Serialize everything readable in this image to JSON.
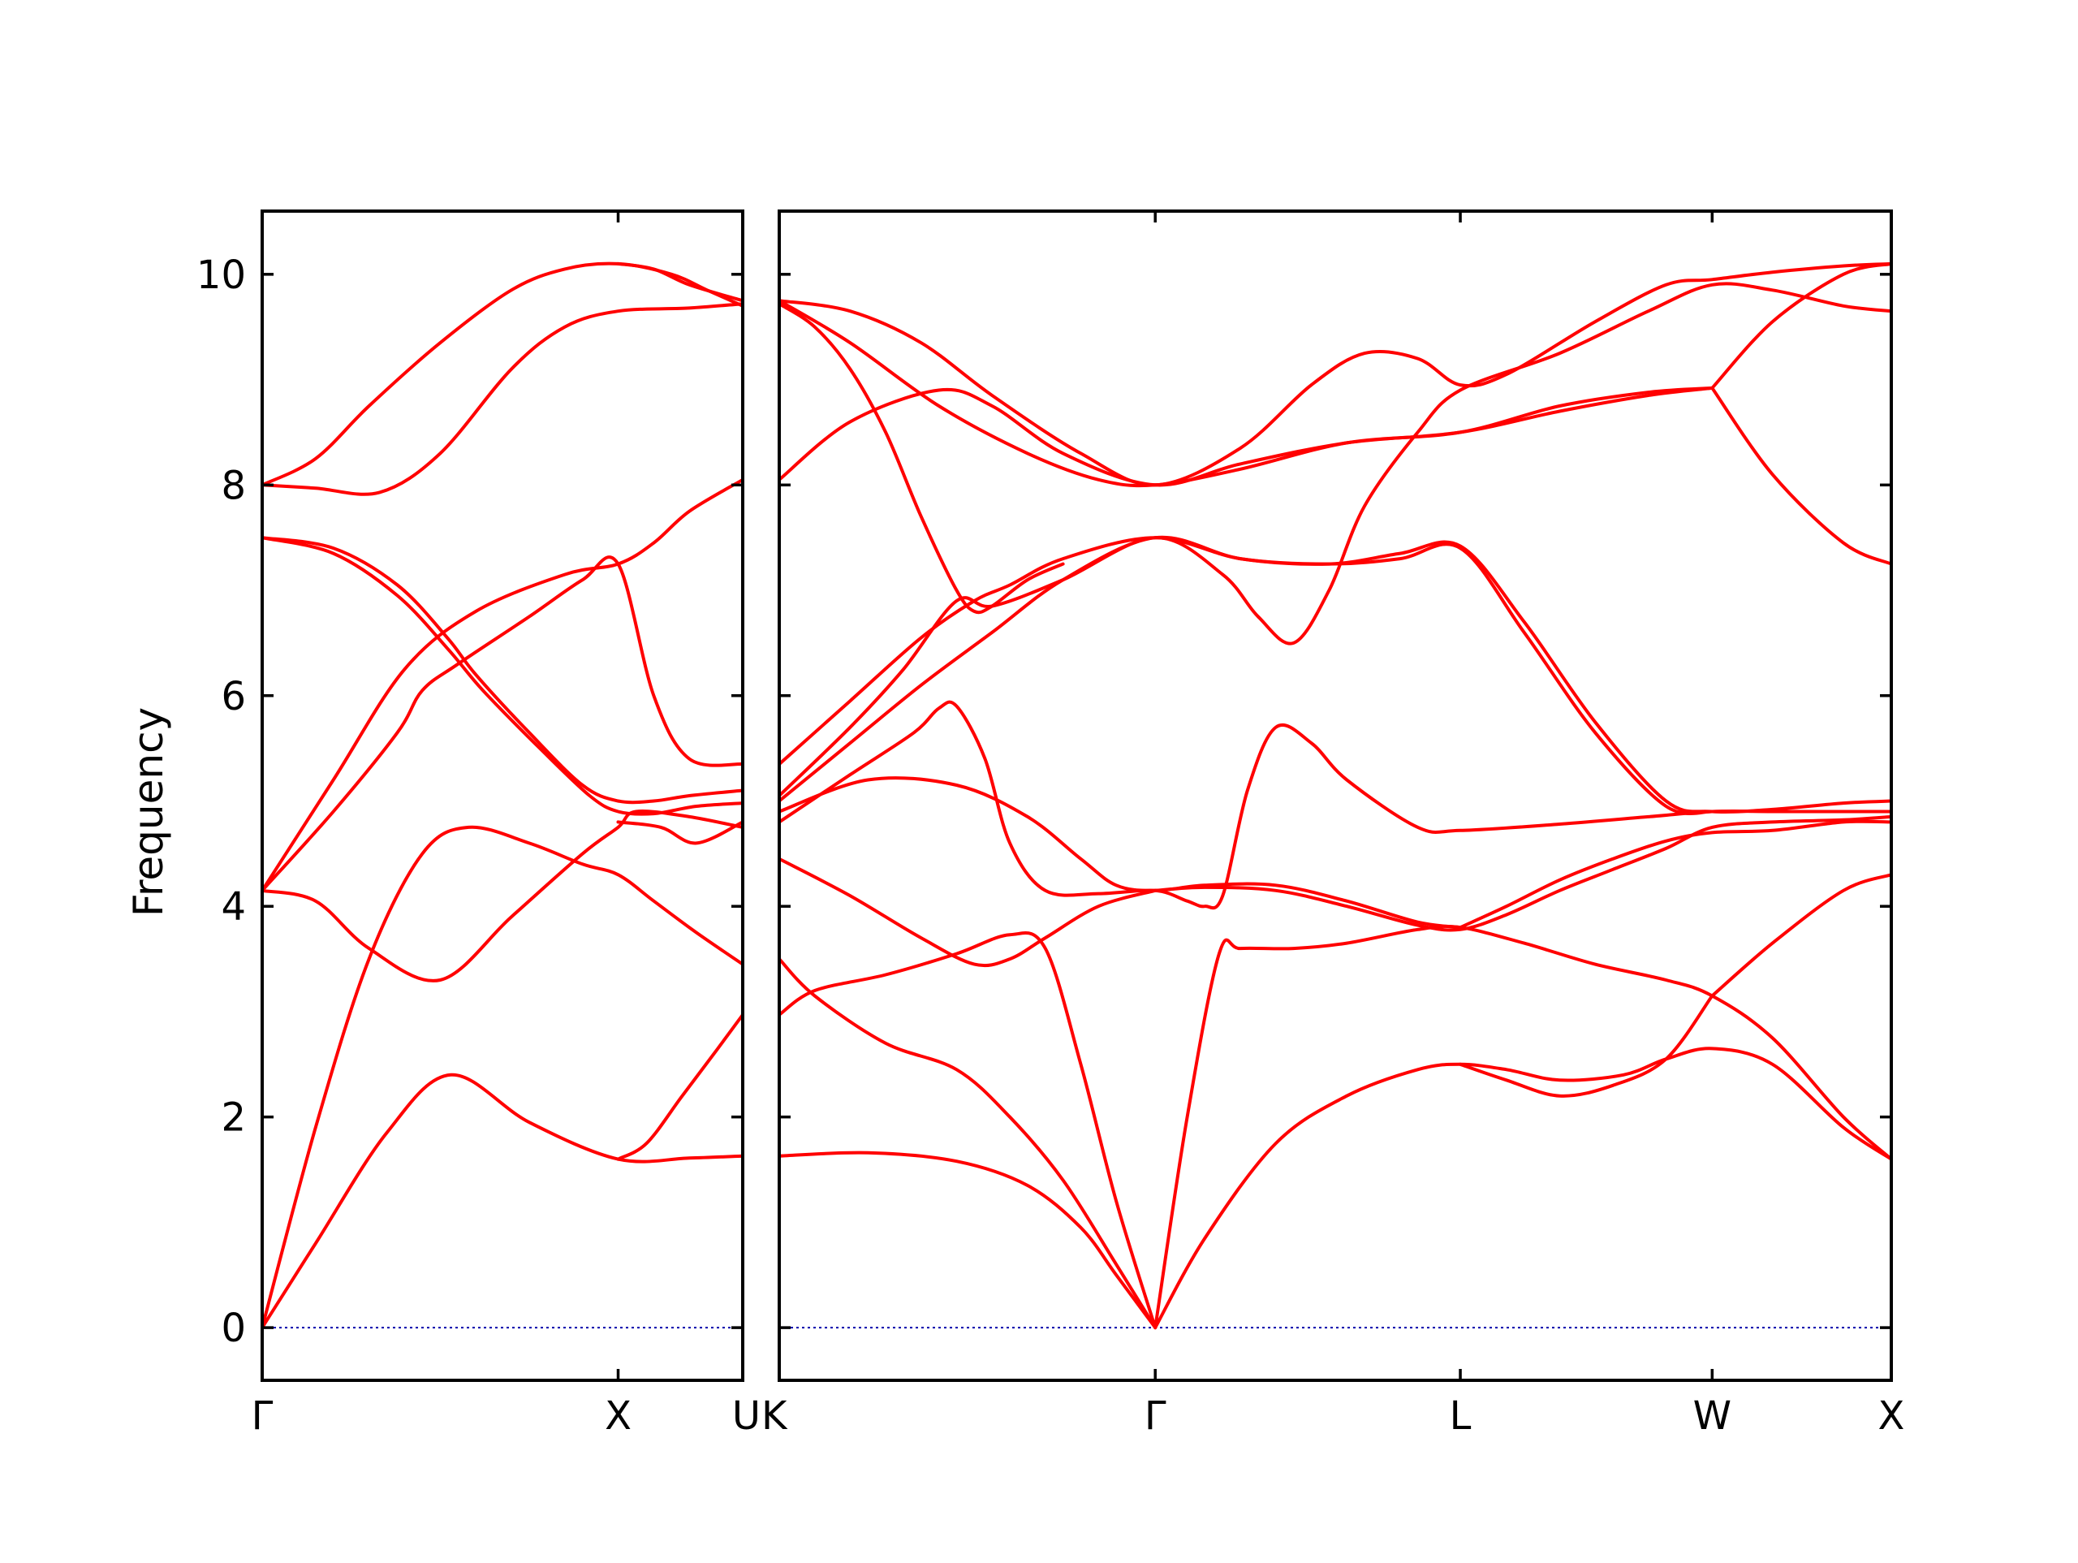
{
  "colors": {
    "band": "#ff0000",
    "zero_line": "#0000aa",
    "axis": "#000000"
  },
  "chart_data": {
    "type": "line",
    "title": "",
    "ylabel": "Frequency",
    "xlabel": "",
    "ylim": [
      -0.5,
      10.6
    ],
    "yticks": [
      0,
      2,
      4,
      6,
      8,
      10
    ],
    "grid": false,
    "legend": "none",
    "panels": [
      {
        "id": "left",
        "xlim": [
          0,
          1.35
        ],
        "high_symmetry_points": [
          {
            "label": "Γ",
            "x": 0
          },
          {
            "label": "X",
            "x": 1.0
          },
          {
            "label": "U",
            "x": 1.35
          }
        ],
        "zero_line": 0,
        "series": [
          {
            "x": [
              0,
              0.15,
              0.35,
              0.53,
              0.75,
              1.0,
              1.2,
              1.35
            ],
            "values": [
              0,
              0.8,
              1.85,
              2.4,
              1.95,
              1.6,
              1.61,
              1.63
            ]
          },
          {
            "x": [
              0,
              0.15,
              0.3,
              0.45,
              0.58,
              0.75,
              0.9,
              1.0,
              1.1,
              1.22,
              1.35
            ],
            "values": [
              0,
              1.9,
              3.5,
              4.5,
              4.75,
              4.6,
              4.4,
              4.3,
              4.05,
              3.75,
              3.45
            ]
          },
          {
            "x": [
              0,
              0.15,
              0.3,
              0.5,
              0.7,
              0.9,
              1.0,
              1.05,
              1.2,
              1.35
            ],
            "values": [
              4.15,
              4.05,
              3.6,
              3.3,
              3.9,
              4.5,
              4.75,
              4.9,
              4.85,
              4.75
            ]
          },
          {
            "x": [
              0,
              0.2,
              0.4,
              0.6,
              0.85,
              1.0,
              1.1,
              1.2,
              1.35
            ],
            "values": [
              4.15,
              5.2,
              6.25,
              6.8,
              7.15,
              7.25,
              7.45,
              7.75,
              8.05
            ]
          },
          {
            "x": [
              0,
              0.2,
              0.38,
              0.52,
              0.6,
              0.75,
              0.9,
              1.0,
              1.1,
              1.2,
              1.35
            ],
            "values": [
              7.5,
              7.4,
              7.05,
              6.55,
              6.2,
              5.65,
              5.15,
              5.0,
              5.0,
              5.05,
              5.1
            ]
          },
          {
            "x": [
              0,
              0.2,
              0.38,
              0.52,
              0.62,
              0.78,
              0.92,
              1.0,
              1.1,
              1.22,
              1.35
            ],
            "values": [
              7.5,
              7.35,
              6.95,
              6.45,
              6.05,
              5.5,
              5.05,
              4.9,
              4.88,
              4.95,
              4.98
            ]
          },
          {
            "x": [
              0,
              0.2,
              0.38,
              0.45,
              0.55,
              0.75,
              0.9,
              1.0,
              1.1,
              1.2,
              1.35
            ],
            "values": [
              4.15,
              4.9,
              5.65,
              6.05,
              6.3,
              6.75,
              7.1,
              7.25,
              6.0,
              5.4,
              5.35
            ]
          },
          {
            "x": [
              0,
              0.15,
              0.33,
              0.5,
              0.7,
              0.85,
              1.0,
              1.2,
              1.35
            ],
            "values": [
              8.0,
              7.97,
              7.93,
              8.3,
              9.1,
              9.5,
              9.65,
              9.68,
              9.72
            ]
          },
          {
            "x": [
              0,
              0.15,
              0.3,
              0.5,
              0.7,
              0.85,
              1.0,
              1.15,
              1.25,
              1.35
            ],
            "values": [
              8.0,
              8.25,
              8.75,
              9.35,
              9.85,
              10.05,
              10.1,
              10.0,
              9.85,
              9.7
            ]
          },
          {
            "x": [
              1.0,
              1.1,
              1.2,
              1.35
            ],
            "values": [
              10.1,
              10.05,
              9.9,
              9.75
            ]
          },
          {
            "x": [
              1.0,
              1.08,
              1.18,
              1.28,
              1.35
            ],
            "values": [
              1.6,
              1.75,
              2.2,
              2.65,
              2.97
            ]
          },
          {
            "x": [
              1.0,
              1.12,
              1.22,
              1.35
            ],
            "values": [
              4.8,
              4.75,
              4.6,
              4.8
            ]
          }
        ]
      },
      {
        "id": "right",
        "xlim": [
          0,
          3.135
        ],
        "high_symmetry_points": [
          {
            "label": "K",
            "x": 0
          },
          {
            "label": "Γ",
            "x": 1.06
          },
          {
            "label": "L",
            "x": 1.92
          },
          {
            "label": "W",
            "x": 2.63
          },
          {
            "label": "X",
            "x": 3.135
          }
        ],
        "zero_line": 0,
        "series": [
          {
            "x": [
              0,
              0.25,
              0.5,
              0.7,
              0.85,
              0.95,
              1.06
            ],
            "values": [
              1.63,
              1.66,
              1.58,
              1.35,
              0.95,
              0.5,
              0.0
            ]
          },
          {
            "x": [
              0,
              0.1,
              0.3,
              0.5,
              0.65,
              0.8,
              0.95,
              1.06
            ],
            "values": [
              3.5,
              3.15,
              2.7,
              2.45,
              2.0,
              1.4,
              0.6,
              0.0
            ]
          },
          {
            "x": [
              0,
              0.1,
              0.3,
              0.5,
              0.65,
              0.75,
              0.85,
              0.95,
              1.06
            ],
            "values": [
              2.97,
              3.2,
              3.35,
              3.55,
              3.73,
              3.6,
              2.5,
              1.2,
              0.0
            ]
          },
          {
            "x": [
              1.06,
              1.2,
              1.4,
              1.6,
              1.8,
              1.92,
              2.05,
              2.2,
              2.38,
              2.5,
              2.63,
              2.8,
              3.0,
              3.135
            ],
            "values": [
              0.0,
              0.85,
              1.75,
              2.2,
              2.45,
              2.5,
              2.45,
              2.35,
              2.4,
              2.55,
              2.65,
              2.5,
              1.9,
              1.6
            ]
          },
          {
            "x": [
              1.06,
              1.15,
              1.24,
              1.3,
              1.45,
              1.6,
              1.8,
              1.92,
              2.1,
              2.3,
              2.5,
              2.63,
              2.8,
              3.0,
              3.135
            ],
            "values": [
              0.0,
              2.0,
              3.55,
              3.6,
              3.6,
              3.65,
              3.78,
              3.8,
              3.65,
              3.45,
              3.3,
              3.15,
              2.75,
              2.0,
              1.6
            ]
          },
          {
            "x": [
              1.92,
              2.05,
              2.2,
              2.35,
              2.5,
              2.63
            ],
            "values": [
              2.5,
              2.35,
              2.2,
              2.3,
              2.55,
              3.15
            ]
          },
          {
            "x": [
              0,
              0.2,
              0.4,
              0.55,
              0.65,
              0.75,
              0.9,
              1.06
            ],
            "values": [
              4.45,
              4.1,
              3.7,
              3.45,
              3.5,
              3.7,
              4.0,
              4.15
            ]
          },
          {
            "x": [
              1.06,
              1.2,
              1.4,
              1.6,
              1.8,
              1.92,
              2.05,
              2.2,
              2.35,
              2.5,
              2.63,
              2.8,
              3.0,
              3.135
            ],
            "values": [
              4.15,
              4.18,
              4.15,
              4.0,
              3.82,
              3.78,
              3.92,
              4.15,
              4.35,
              4.55,
              4.75,
              4.8,
              4.82,
              4.85
            ]
          },
          {
            "x": [
              1.92,
              2.05,
              2.2,
              2.35,
              2.5,
              2.63,
              2.8,
              3.0,
              3.135
            ],
            "values": [
              3.8,
              4.0,
              4.25,
              4.45,
              4.62,
              4.7,
              4.72,
              4.8,
              4.8
            ]
          },
          {
            "x": [
              0,
              0.25,
              0.5,
              0.7,
              0.85,
              0.95,
              1.06,
              1.2,
              1.4,
              1.6,
              1.8,
              1.92
            ],
            "values": [
              4.9,
              5.2,
              5.15,
              4.85,
              4.45,
              4.2,
              4.15,
              4.2,
              4.2,
              4.05,
              3.85,
              3.8
            ]
          },
          {
            "x": [
              0,
              0.2,
              0.38,
              0.45,
              0.5,
              0.58,
              0.65,
              0.75,
              0.9,
              1.06,
              1.15,
              1.2,
              1.25,
              1.32,
              1.4,
              1.5,
              1.6,
              1.8,
              1.92,
              2.2,
              2.45,
              2.63,
              2.8,
              3.0,
              3.135
            ],
            "values": [
              4.8,
              5.25,
              5.65,
              5.88,
              5.9,
              5.4,
              4.6,
              4.15,
              4.12,
              4.15,
              4.05,
              4.0,
              4.1,
              5.1,
              5.7,
              5.55,
              5.2,
              4.75,
              4.72,
              4.78,
              4.85,
              4.9,
              4.9,
              4.9,
              4.9
            ]
          },
          {
            "x": [
              0,
              0.2,
              0.4,
              0.6,
              0.8,
              1.06,
              1.3,
              1.55,
              1.75,
              1.92,
              2.1,
              2.3,
              2.5,
              2.63,
              2.8,
              3.0,
              3.135
            ],
            "values": [
              5.0,
              5.55,
              6.1,
              6.6,
              7.1,
              7.5,
              7.3,
              7.25,
              7.35,
              7.42,
              6.7,
              5.75,
              5.0,
              4.9,
              4.92,
              4.98,
              5.0
            ]
          },
          {
            "x": [
              0,
              0.2,
              0.4,
              0.55,
              0.65,
              0.8,
              1.06,
              1.3,
              1.55,
              1.75,
              1.92,
              2.1,
              2.3,
              2.5,
              2.63
            ],
            "values": [
              5.35,
              5.95,
              6.55,
              6.9,
              7.05,
              7.3,
              7.5,
              7.3,
              7.25,
              7.3,
              7.4,
              6.6,
              5.65,
              4.95,
              4.9
            ]
          },
          {
            "x": [
              0,
              0.2,
              0.35,
              0.5,
              0.6,
              0.8,
              1.06,
              1.25,
              1.35,
              1.45,
              1.55,
              1.65,
              1.8,
              1.92,
              2.2,
              2.45,
              2.63,
              2.8,
              3.0,
              3.135
            ],
            "values": [
              5.05,
              5.7,
              6.25,
              6.9,
              6.85,
              7.1,
              7.5,
              7.15,
              6.75,
              6.5,
              7.0,
              7.8,
              8.5,
              8.9,
              9.25,
              9.65,
              9.9,
              9.85,
              9.7,
              9.65
            ]
          },
          {
            "x": [
              0,
              0.2,
              0.45,
              0.6,
              0.8,
              1.06,
              1.3,
              1.6,
              1.92,
              2.2,
              2.45,
              2.63
            ],
            "values": [
              8.05,
              8.6,
              8.9,
              8.75,
              8.3,
              8.0,
              8.2,
              8.4,
              8.5,
              8.7,
              8.85,
              8.92
            ]
          },
          {
            "x": [
              0,
              0.2,
              0.45,
              0.7,
              0.9,
              1.06,
              1.3,
              1.6,
              1.92,
              2.2,
              2.45,
              2.63
            ],
            "values": [
              9.75,
              9.35,
              8.75,
              8.3,
              8.05,
              8.0,
              8.15,
              8.4,
              8.5,
              8.75,
              8.88,
              8.92
            ]
          },
          {
            "x": [
              0,
              0.2,
              0.4,
              0.6,
              0.85,
              1.06,
              1.3,
              1.5,
              1.65,
              1.8,
              1.92,
              2.05,
              2.3,
              2.5,
              2.63,
              2.8,
              3.0,
              3.135
            ],
            "values": [
              9.75,
              9.65,
              9.35,
              8.85,
              8.3,
              8.0,
              8.35,
              8.95,
              9.25,
              9.2,
              8.95,
              9.05,
              9.55,
              9.9,
              9.95,
              10.02,
              10.08,
              10.1
            ]
          },
          {
            "x": [
              0,
              0.1,
              0.2,
              0.3,
              0.4,
              0.5,
              0.55,
              0.6,
              0.7,
              0.8
            ],
            "values": [
              9.72,
              9.5,
              9.1,
              8.5,
              7.7,
              7.0,
              6.8,
              6.85,
              7.1,
              7.25
            ]
          },
          {
            "x": [
              2.63,
              2.8,
              3.0,
              3.135
            ],
            "values": [
              8.92,
              9.55,
              10.0,
              10.1
            ]
          },
          {
            "x": [
              2.63,
              2.8,
              3.0,
              3.135
            ],
            "values": [
              8.92,
              8.1,
              7.45,
              7.25
            ]
          },
          {
            "x": [
              2.63,
              2.8,
              3.0,
              3.135
            ],
            "values": [
              3.15,
              3.65,
              4.15,
              4.3
            ]
          }
        ]
      }
    ]
  }
}
